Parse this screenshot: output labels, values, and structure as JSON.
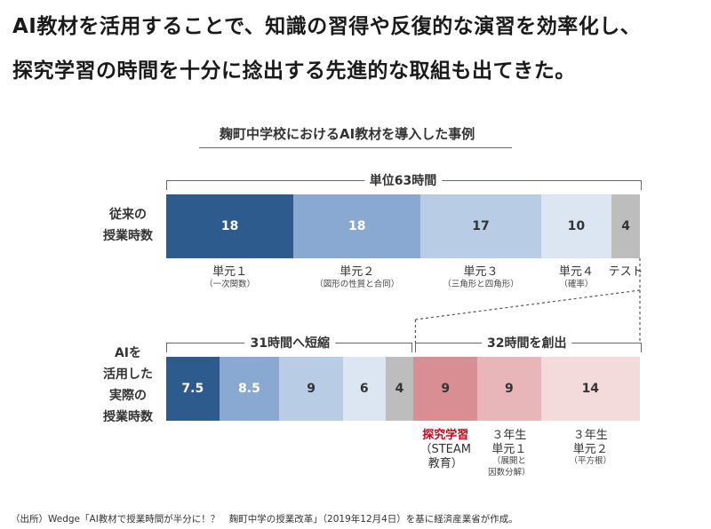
{
  "headline": {
    "line1": "AI教材を活用することで、知識の習得や反復的な演習を効率化し、",
    "line2": "探究学習の時間を十分に捻出する先進的な取組も出てきた。"
  },
  "chart_data": {
    "type": "bar",
    "title": "麹町中学校におけるAI教材を導入した事例",
    "rows": [
      {
        "label": [
          "従来の",
          "授業時数"
        ],
        "brace": "単位63時間",
        "segments": [
          {
            "value": 18,
            "label": "18",
            "category": "単元１",
            "sub": "（一次関数）",
            "color": "#2e5b8d",
            "text_color": "#ffffff"
          },
          {
            "value": 18,
            "label": "18",
            "category": "単元２",
            "sub": "（図形の性質と合同）",
            "color": "#8aa9d2",
            "text_color": "#ffffff"
          },
          {
            "value": 17,
            "label": "17",
            "category": "単元３",
            "sub": "（三角形と四角形）",
            "color": "#b9cce6",
            "text_color": "#333333"
          },
          {
            "value": 10,
            "label": "10",
            "category": "単元４",
            "sub": "（確率）",
            "color": "#dce5f2",
            "text_color": "#333333"
          },
          {
            "value": 4,
            "label": "4",
            "category": "テスト",
            "sub": "",
            "color": "#bdbdbd",
            "text_color": "#333333"
          }
        ]
      },
      {
        "label": [
          "AIを",
          "活用した",
          "実際の",
          "授業時数"
        ],
        "braces": [
          "31時間へ短縮",
          "32時間を創出"
        ],
        "segments": [
          {
            "value": 7.5,
            "label": "7.5",
            "color": "#2e5b8d",
            "text_color": "#ffffff"
          },
          {
            "value": 8.5,
            "label": "8.5",
            "color": "#8aa9d2",
            "text_color": "#ffffff"
          },
          {
            "value": 9,
            "label": "9",
            "color": "#b9cce6",
            "text_color": "#333333"
          },
          {
            "value": 6,
            "label": "6",
            "color": "#dce5f2",
            "text_color": "#333333"
          },
          {
            "value": 4,
            "label": "4",
            "color": "#bdbdbd",
            "text_color": "#333333"
          },
          {
            "value": 9,
            "label": "9",
            "category": "探究学習",
            "sub": [
              "（STEAM",
              "教育）"
            ],
            "color": "#d98e93",
            "text_color": "#333333",
            "highlight": true
          },
          {
            "value": 9,
            "label": "9",
            "category": "３年生\n単元１",
            "sub": [
              "（展開と",
              "因数分解）"
            ],
            "color": "#e8b6b8",
            "text_color": "#333333"
          },
          {
            "value": 14,
            "label": "14",
            "category": "３年生\n単元２",
            "sub": [
              "（平方根）"
            ],
            "color": "#f3dadb",
            "text_color": "#333333"
          }
        ]
      }
    ]
  },
  "source": "（出所）Wedge「AI教材で授業時間が半分に！？　麹町中学の授業改革」（2019年12月4日）を基に経済産業省が作成。"
}
